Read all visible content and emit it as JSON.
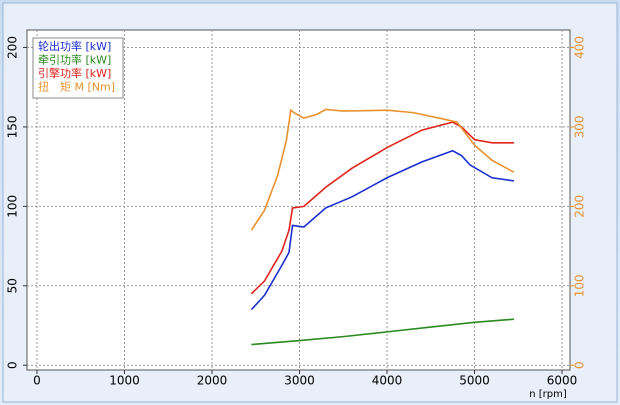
{
  "chart_data": {
    "type": "line",
    "x_label": "n [rpm]",
    "xlim": [
      -114,
      6091
    ],
    "xticks": [
      0,
      1000,
      2000,
      3000,
      4000,
      5000,
      6000
    ],
    "ylim": [
      -3,
      211
    ],
    "yticks": [
      0,
      50,
      100,
      150,
      200
    ],
    "y2lim": [
      -6,
      422
    ],
    "y2ticks": [
      0,
      100,
      200,
      300,
      400
    ],
    "y2_color": "#e8922e",
    "grid": true,
    "series": [
      {
        "name": "轮出功率 [kW]",
        "color": "#1a2fd0",
        "x": [
          2450,
          2600,
          2800,
          2880,
          2920,
          3050,
          3300,
          3600,
          4000,
          4400,
          4750,
          4850,
          4950,
          5200,
          5450
        ],
        "values": [
          35,
          44,
          63,
          71,
          88,
          87,
          99,
          106,
          118,
          128,
          135,
          132,
          126,
          118,
          116
        ]
      },
      {
        "name": "牵引功率 [kW]",
        "color": "#2a8a1e",
        "x": [
          2450,
          3000,
          3500,
          4000,
          4500,
          5000,
          5450
        ],
        "values": [
          13,
          15.5,
          18,
          21,
          24,
          27,
          29
        ]
      },
      {
        "name": "引擎功率 [kW]",
        "color": "#e0231c",
        "x": [
          2450,
          2600,
          2800,
          2880,
          2920,
          3050,
          3300,
          3600,
          4000,
          4400,
          4750,
          4850,
          5000,
          5200,
          5450
        ],
        "values": [
          45,
          53,
          72,
          85,
          99,
          100,
          112,
          124,
          137,
          148,
          153,
          150,
          142,
          140,
          140
        ]
      },
      {
        "name": "扭　矩 M [Nm]",
        "color": "#e8922e",
        "axis": "y2",
        "x": [
          2450,
          2600,
          2750,
          2850,
          2900,
          2950,
          3050,
          3200,
          3300,
          3500,
          4000,
          4300,
          4600,
          4800,
          5000,
          5200,
          5450
        ],
        "values": [
          170,
          195,
          239,
          283,
          321,
          317,
          311,
          316,
          322,
          320,
          321,
          318,
          311,
          306,
          277,
          258,
          243
        ]
      }
    ]
  }
}
